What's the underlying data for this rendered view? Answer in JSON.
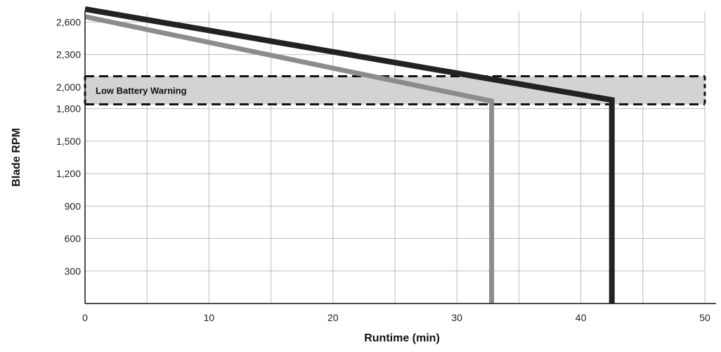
{
  "chart_data": {
    "type": "line",
    "xlabel": "Runtime (min)",
    "ylabel": "Blade RPM",
    "xlim": [
      0,
      50
    ],
    "ylim": [
      0,
      2700
    ],
    "x_ticks": [
      0,
      10,
      20,
      30,
      40,
      50
    ],
    "x_tick_labels": [
      "0",
      "10",
      "20",
      "30",
      "40",
      "50"
    ],
    "y_ticks": [
      300,
      600,
      900,
      1200,
      1500,
      1800,
      2000,
      2300,
      2600
    ],
    "y_tick_labels": [
      "300",
      "600",
      "900",
      "1,200",
      "1,500",
      "1,800",
      "2,000",
      "2,300",
      "2,600"
    ],
    "grid": true,
    "band": {
      "label": "Low Battery Warning",
      "y_from": 1840,
      "y_to": 2100,
      "color": "#d3d3d3",
      "border": "dashed"
    },
    "series": [
      {
        "color": "#222222",
        "points": [
          [
            0,
            2720
          ],
          [
            42.5,
            1880
          ],
          [
            42.5,
            0
          ]
        ]
      },
      {
        "color": "#8c8c8c",
        "points": [
          [
            0,
            2650
          ],
          [
            32.8,
            1870
          ],
          [
            32.8,
            0
          ]
        ]
      }
    ]
  }
}
